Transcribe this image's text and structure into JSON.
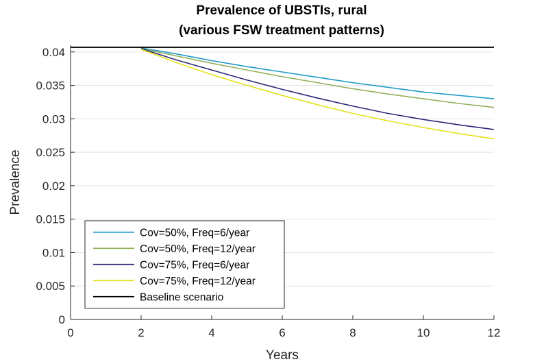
{
  "chart_data": {
    "type": "line",
    "title": "Prevalence of UBSTIs, rural",
    "subtitle": "(various FSW treatment patterns)",
    "xlabel": "Years",
    "ylabel": "Prevalence",
    "xlim": [
      0,
      12
    ],
    "ylim": [
      0,
      0.041
    ],
    "xticks": [
      0,
      2,
      4,
      6,
      8,
      10,
      12
    ],
    "xtick_labels": [
      "0",
      "2",
      "4",
      "6",
      "8",
      "10",
      "12"
    ],
    "yticks": [
      0,
      0.005,
      0.01,
      0.015,
      0.02,
      0.025,
      0.03,
      0.035,
      0.04
    ],
    "ytick_labels": [
      "0",
      "0.005",
      "0.01",
      "0.015",
      "0.02",
      "0.025",
      "0.03",
      "0.035",
      "0.04"
    ],
    "grid": "horizontal",
    "legend_position": "bottom-left",
    "series": [
      {
        "name": "Cov=50%, Freq=6/year",
        "color": "#1f9bc8",
        "x": [
          2,
          3,
          4,
          5,
          6,
          7,
          8,
          9,
          10,
          11,
          12
        ],
        "y": [
          0.0406,
          0.0397,
          0.0387,
          0.0378,
          0.037,
          0.0362,
          0.0354,
          0.0347,
          0.034,
          0.0335,
          0.033
        ]
      },
      {
        "name": "Cov=50%, Freq=12/year",
        "color": "#93b05a",
        "x": [
          2,
          3,
          4,
          5,
          6,
          7,
          8,
          9,
          10,
          11,
          12
        ],
        "y": [
          0.0405,
          0.0394,
          0.0383,
          0.0373,
          0.0363,
          0.0354,
          0.0345,
          0.0337,
          0.033,
          0.0323,
          0.0317
        ]
      },
      {
        "name": "Cov=75%, Freq=6/year",
        "color": "#2b2878",
        "x": [
          2,
          3,
          4,
          5,
          6,
          7,
          8,
          9,
          10,
          11,
          12
        ],
        "y": [
          0.0405,
          0.0388,
          0.0373,
          0.0358,
          0.0344,
          0.0331,
          0.0319,
          0.0308,
          0.0299,
          0.0291,
          0.0284
        ]
      },
      {
        "name": "Cov=75%, Freq=12/year",
        "color": "#e4e01c",
        "x": [
          2,
          3,
          4,
          5,
          6,
          7,
          8,
          9,
          10,
          11,
          12
        ],
        "y": [
          0.0404,
          0.0384,
          0.0366,
          0.035,
          0.0335,
          0.0321,
          0.0308,
          0.0297,
          0.0287,
          0.0278,
          0.027
        ]
      },
      {
        "name": "Baseline scenario",
        "color": "#000000",
        "x": [
          0,
          12
        ],
        "y": [
          0.0407,
          0.0407
        ]
      }
    ]
  }
}
